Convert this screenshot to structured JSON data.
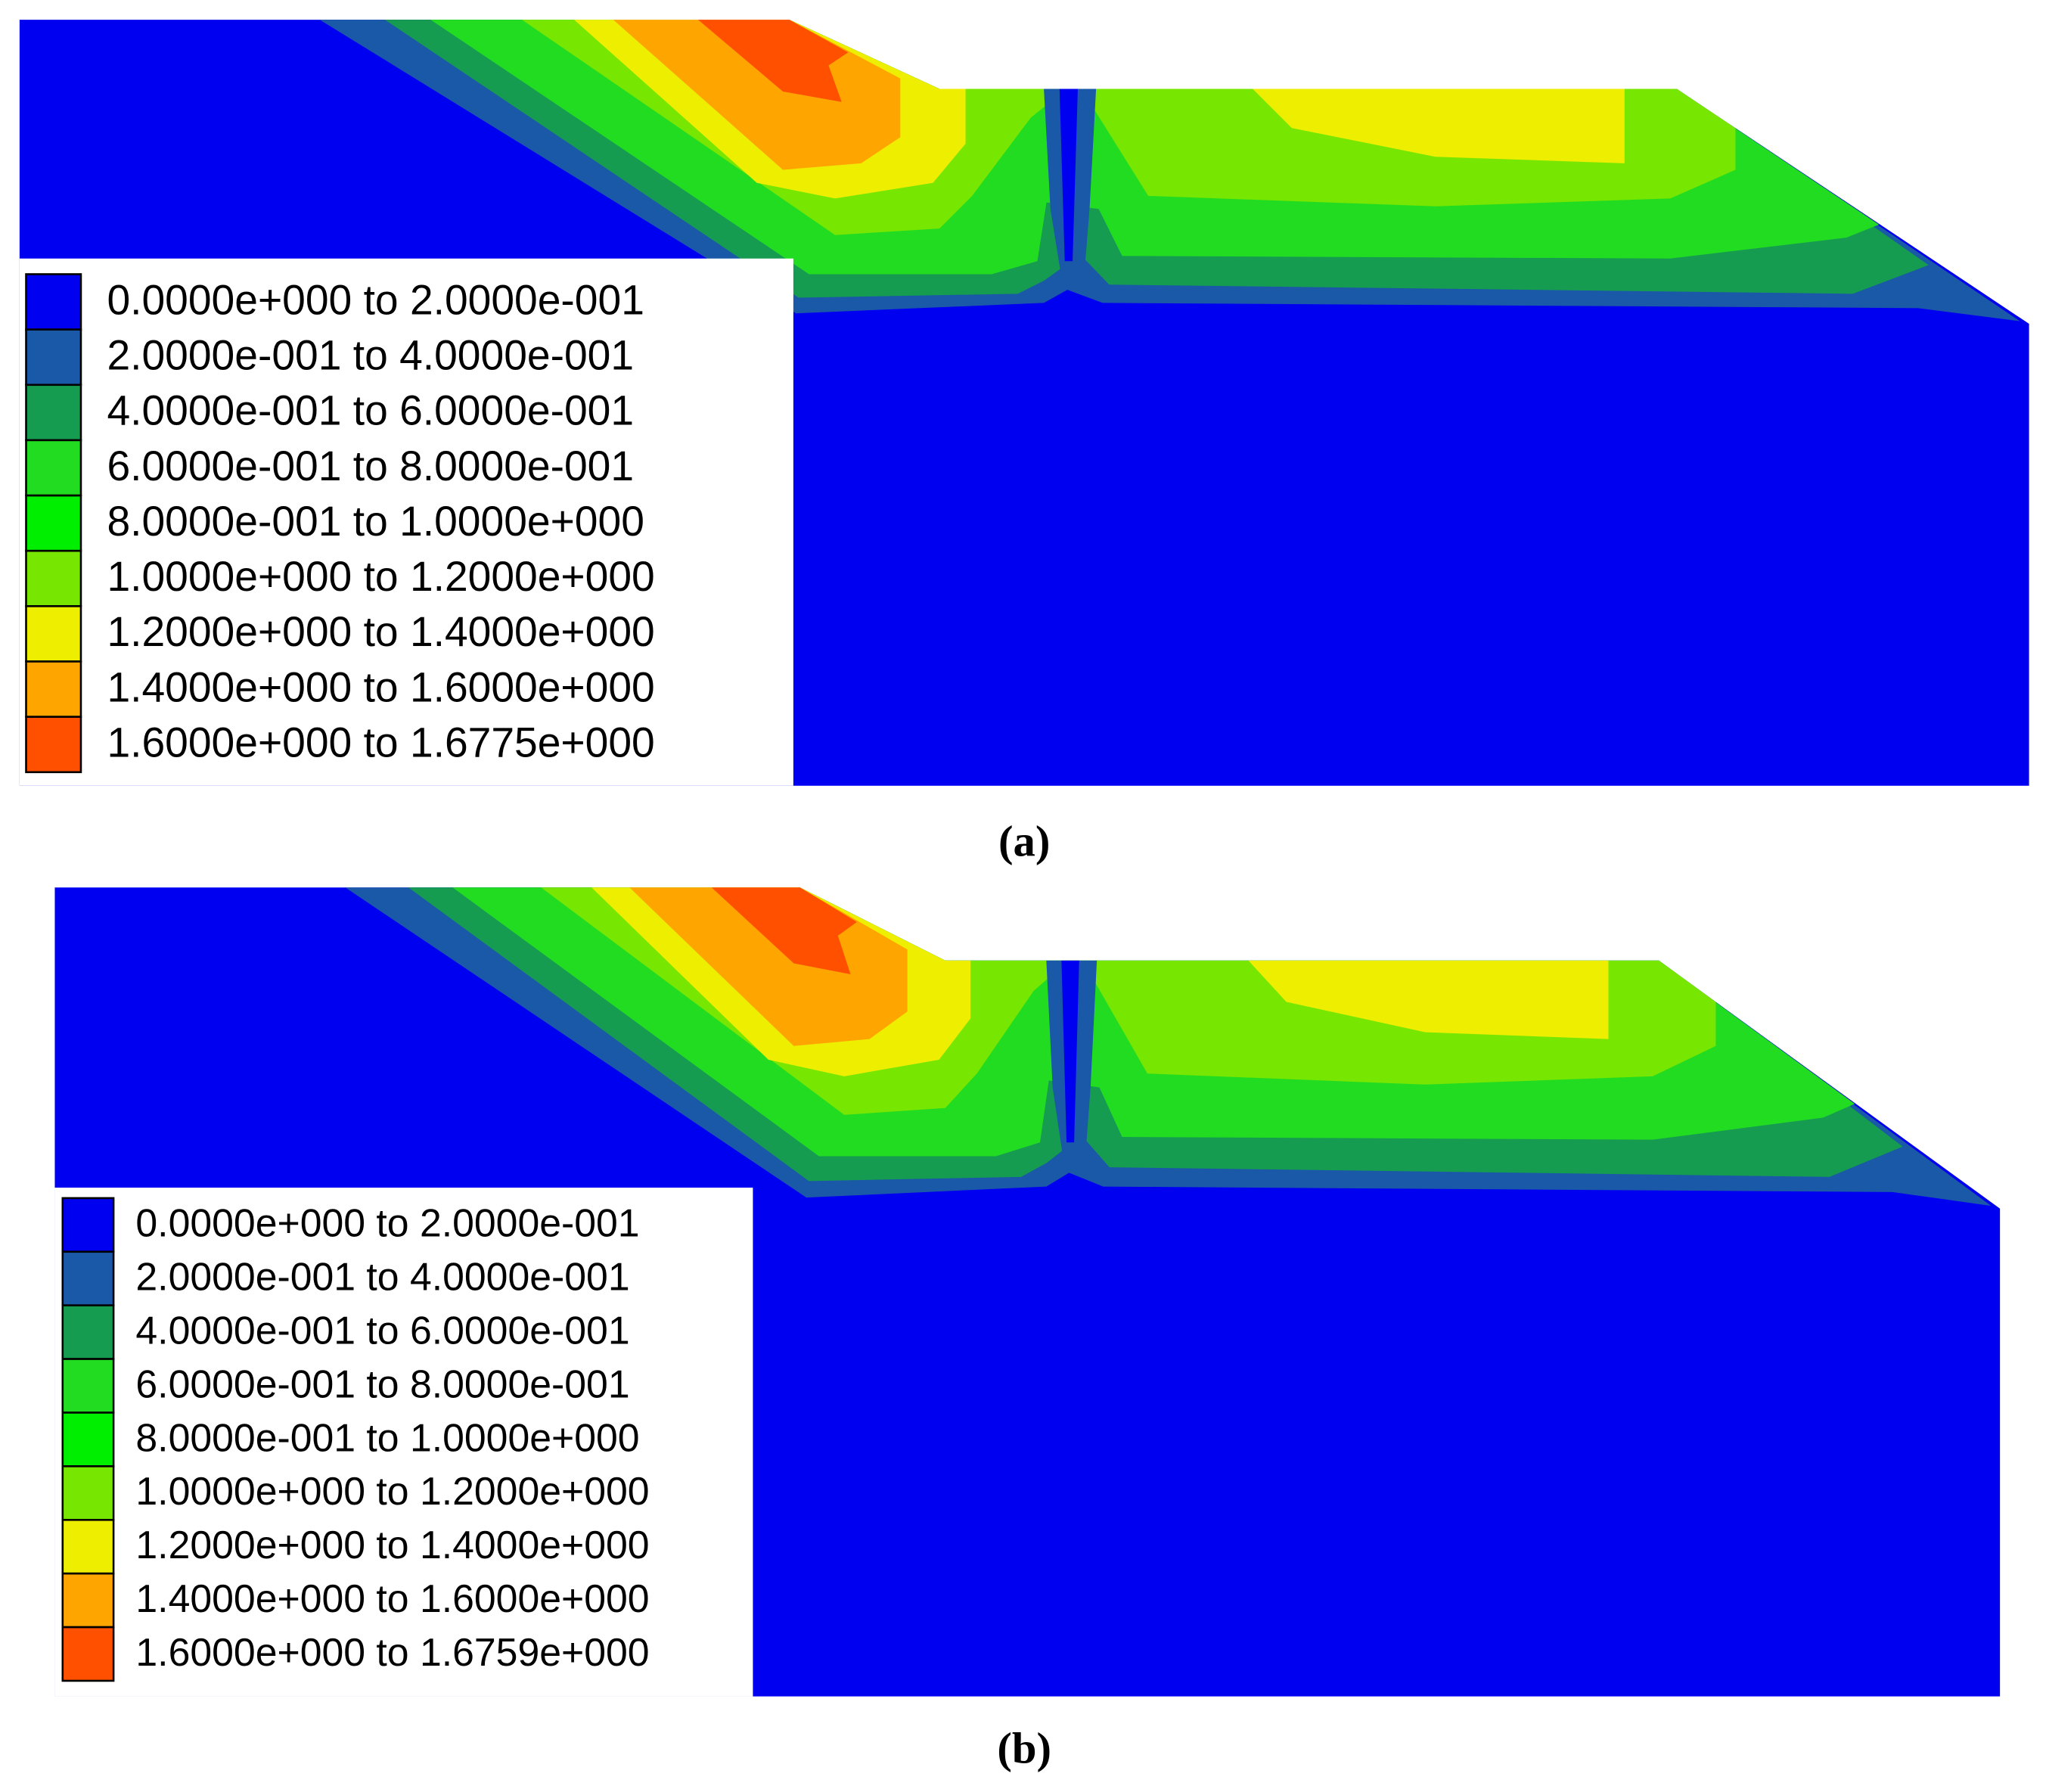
{
  "panels": [
    {
      "caption": "(a)",
      "legend": [
        {
          "label": "0.0000e+000 to  2.0000e-001",
          "color": "#0000f0"
        },
        {
          "label": "2.0000e-001 to  4.0000e-001",
          "color": "#1a58a8"
        },
        {
          "label": "4.0000e-001 to  6.0000e-001",
          "color": "#169c50"
        },
        {
          "label": "6.0000e-001 to  8.0000e-001",
          "color": "#22dc22"
        },
        {
          "label": "8.0000e-001 to  1.0000e+000",
          "color": "#00ee00"
        },
        {
          "label": "1.0000e+000 to  1.2000e+000",
          "color": "#77e600"
        },
        {
          "label": "1.2000e+000 to  1.4000e+000",
          "color": "#eeee00"
        },
        {
          "label": "1.4000e+000 to  1.6000e+000",
          "color": "#ffa500"
        },
        {
          "label": "1.6000e+000 to  1.6775e+000",
          "color": "#ff5000"
        }
      ]
    },
    {
      "caption": "(b)",
      "legend": [
        {
          "label": "0.0000e+000 to  2.0000e-001",
          "color": "#0000f0"
        },
        {
          "label": "2.0000e-001 to  4.0000e-001",
          "color": "#1a58a8"
        },
        {
          "label": "4.0000e-001 to  6.0000e-001",
          "color": "#169c50"
        },
        {
          "label": "6.0000e-001 to  8.0000e-001",
          "color": "#22dc22"
        },
        {
          "label": "8.0000e-001 to  1.0000e+000",
          "color": "#00ee00"
        },
        {
          "label": "1.0000e+000 to  1.2000e+000",
          "color": "#77e600"
        },
        {
          "label": "1.2000e+000 to  1.4000e+000",
          "color": "#eeee00"
        },
        {
          "label": "1.4000e+000 to  1.6000e+000",
          "color": "#ffa500"
        },
        {
          "label": "1.6000e+000 to  1.6759e+000",
          "color": "#ff5000"
        }
      ]
    }
  ]
}
